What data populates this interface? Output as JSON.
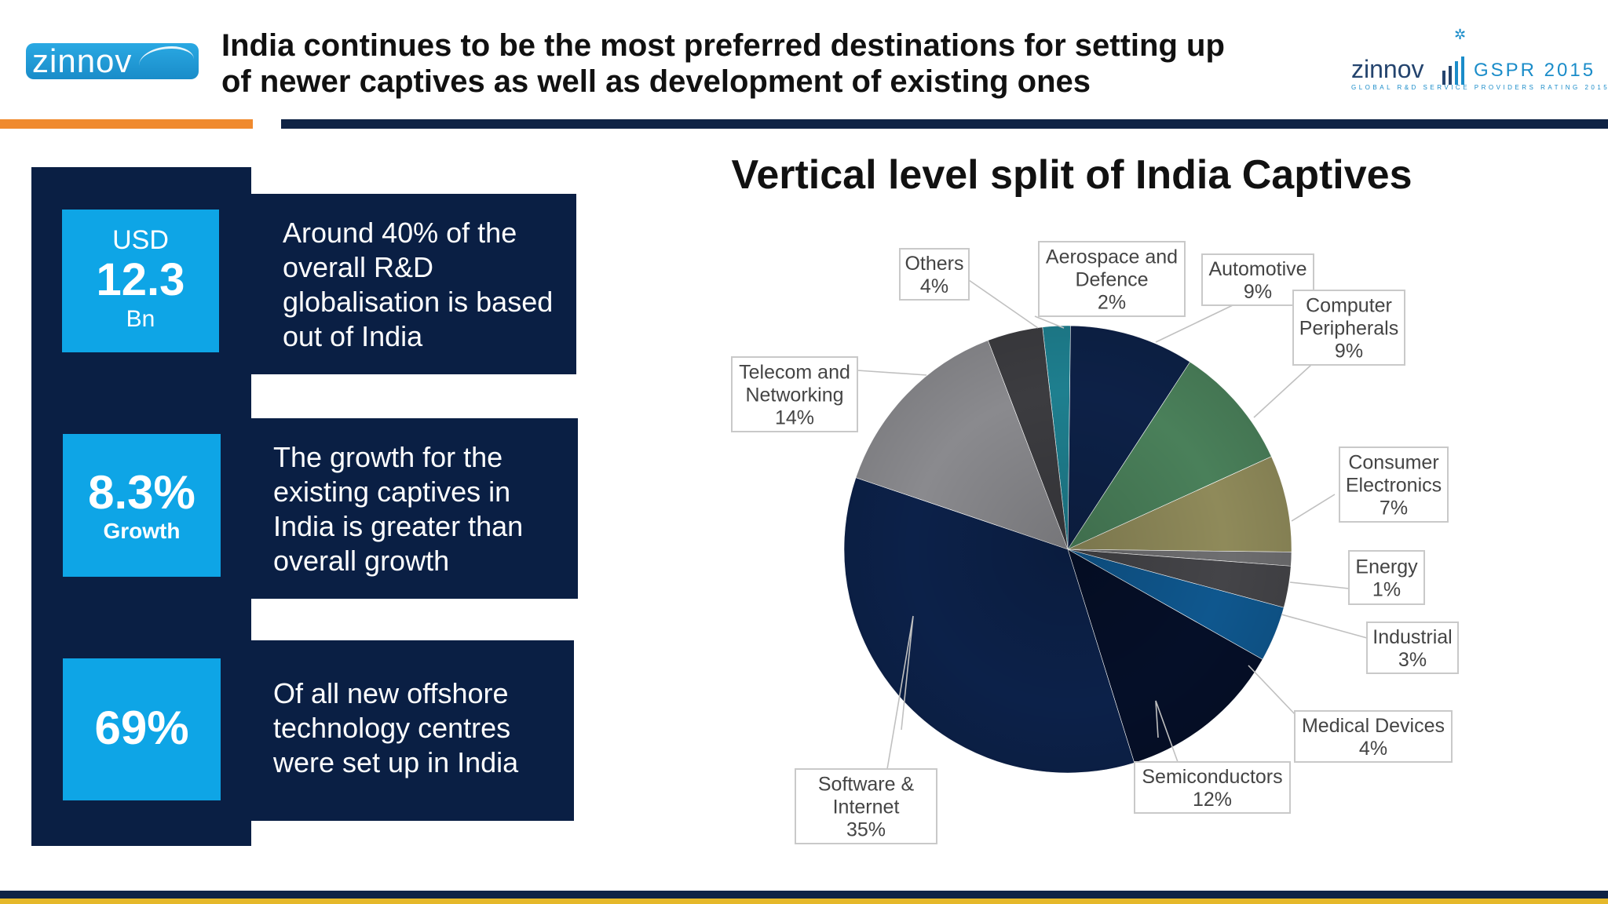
{
  "header": {
    "logo_left": "zinnov",
    "title_line1": "India continues to be the most preferred destinations for setting up",
    "title_line2": "of newer captives as well as development of existing ones",
    "logo_right_word": "zinnov",
    "logo_right_mark": "GSPR 2015",
    "logo_right_tagline": "GLOBAL R&D SERVICE PROVIDERS RATING 2015"
  },
  "stats": [
    {
      "top": "USD",
      "value": "12.3",
      "bottom": "Bn",
      "text": [
        "Around 40% of the",
        "overall R&D",
        "globalisation is based",
        "out of India"
      ]
    },
    {
      "top": "",
      "value": "8.3%",
      "bottom": "Growth",
      "text": [
        "The growth for the",
        "existing captives in",
        "India is greater than",
        "overall growth"
      ]
    },
    {
      "top": "",
      "value": "69%",
      "bottom": "",
      "text": [
        "Of all new offshore",
        "technology centres",
        "were set up in India"
      ]
    }
  ],
  "colors": {
    "navy": "#0a1f44",
    "cyan": "#0ea5e6",
    "orange": "#f08a2e",
    "gold": "#e5b82a"
  },
  "chart_data": {
    "type": "pie",
    "title": "Vertical level split of India Captives",
    "series": [
      {
        "name": "Aerospace and Defence",
        "value": 2,
        "label": "2%",
        "color": "#1e7f8f"
      },
      {
        "name": "Automotive",
        "value": 9,
        "label": "9%",
        "color": "#0d2147"
      },
      {
        "name": "Computer Peripherals",
        "value": 9,
        "label": "9%",
        "color": "#4a805a"
      },
      {
        "name": "Consumer Electronics",
        "value": 7,
        "label": "7%",
        "color": "#8f8a5a"
      },
      {
        "name": "Energy",
        "value": 1,
        "label": "1%",
        "color": "#6e6e70"
      },
      {
        "name": "Industrial",
        "value": 3,
        "label": "3%",
        "color": "#444448"
      },
      {
        "name": "Medical Devices",
        "value": 4,
        "label": "4%",
        "color": "#0f578e"
      },
      {
        "name": "Semiconductors",
        "value": 12,
        "label": "12%",
        "color": "#050f28"
      },
      {
        "name": "Software & Internet",
        "value": 35,
        "label": "35%",
        "color": "#0c2149"
      },
      {
        "name": "Telecom and Networking",
        "value": 14,
        "label": "14%",
        "color": "#8a8a8e"
      },
      {
        "name": "Others",
        "value": 4,
        "label": "4%",
        "color": "#3c3c40"
      }
    ],
    "labels": [
      {
        "lines": [
          "Aerospace and",
          "Defence",
          "2%"
        ]
      },
      {
        "lines": [
          "Automotive",
          "9%"
        ]
      },
      {
        "lines": [
          "Computer",
          "Peripherals",
          "9%"
        ]
      },
      {
        "lines": [
          "Consumer",
          "Electronics",
          "7%"
        ]
      },
      {
        "lines": [
          "Energy",
          "1%"
        ]
      },
      {
        "lines": [
          "Industrial",
          "3%"
        ]
      },
      {
        "lines": [
          "Medical Devices",
          "4%"
        ]
      },
      {
        "lines": [
          "Semiconductors",
          "12%"
        ]
      },
      {
        "lines": [
          "Software &",
          "Internet",
          "35%"
        ]
      },
      {
        "lines": [
          "Telecom and",
          "Networking",
          "14%"
        ]
      },
      {
        "lines": [
          "Others",
          "4%"
        ]
      }
    ],
    "legend": "none"
  }
}
